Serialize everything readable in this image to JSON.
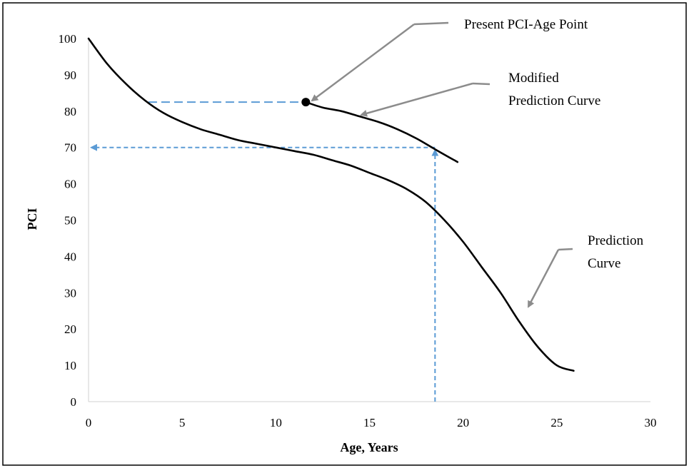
{
  "chart_data": {
    "type": "line",
    "xlabel": "Age, Years",
    "ylabel": "PCI",
    "xlim": [
      0,
      30
    ],
    "ylim": [
      0,
      100
    ],
    "x_ticks": [
      0,
      5,
      10,
      15,
      20,
      25,
      30
    ],
    "y_ticks": [
      0,
      10,
      20,
      30,
      40,
      50,
      60,
      70,
      80,
      90,
      100
    ],
    "grid": false,
    "legend": "none",
    "series": [
      {
        "color": "#000000",
        "x": [
          0,
          1,
          2,
          3,
          4,
          5,
          6,
          7,
          8,
          9,
          10,
          11,
          12,
          13,
          14,
          15,
          16,
          17,
          18,
          19,
          20,
          21,
          22,
          23,
          24,
          25,
          25.9
        ],
        "y": [
          100,
          93,
          87.5,
          83,
          79.5,
          77,
          75,
          73.5,
          72,
          71,
          70,
          69,
          68,
          66.5,
          65,
          63,
          61,
          58.5,
          55,
          50,
          44,
          37,
          30,
          22,
          15,
          10,
          8.5
        ]
      },
      {
        "color": "#000000",
        "x": [
          11.6,
          12.5,
          13.5,
          14.5,
          15.5,
          16.5,
          17.5,
          18.5,
          19.7
        ],
        "y": [
          82.5,
          81,
          80,
          78.5,
          77,
          75,
          72.5,
          69.5,
          66
        ]
      }
    ],
    "points": [
      {
        "x": 11.6,
        "y": 82.5
      }
    ],
    "guides": {
      "color": "#5b9bd5",
      "horizontal_82": {
        "x": [
          3.2,
          11.6
        ],
        "y": 82.5
      },
      "vertical_18_5": {
        "x": 18.5,
        "y": [
          0,
          70
        ]
      },
      "horizontal_70": {
        "x": [
          18.5,
          0
        ],
        "y": 70
      }
    },
    "annotations": [
      {
        "text": "Present PCI-Age Point"
      },
      {
        "text_lines": [
          "Modified",
          "Prediction Curve"
        ]
      },
      {
        "text_lines": [
          "Prediction",
          "Curve"
        ]
      }
    ],
    "arrow_color": "#8c8c8c"
  }
}
